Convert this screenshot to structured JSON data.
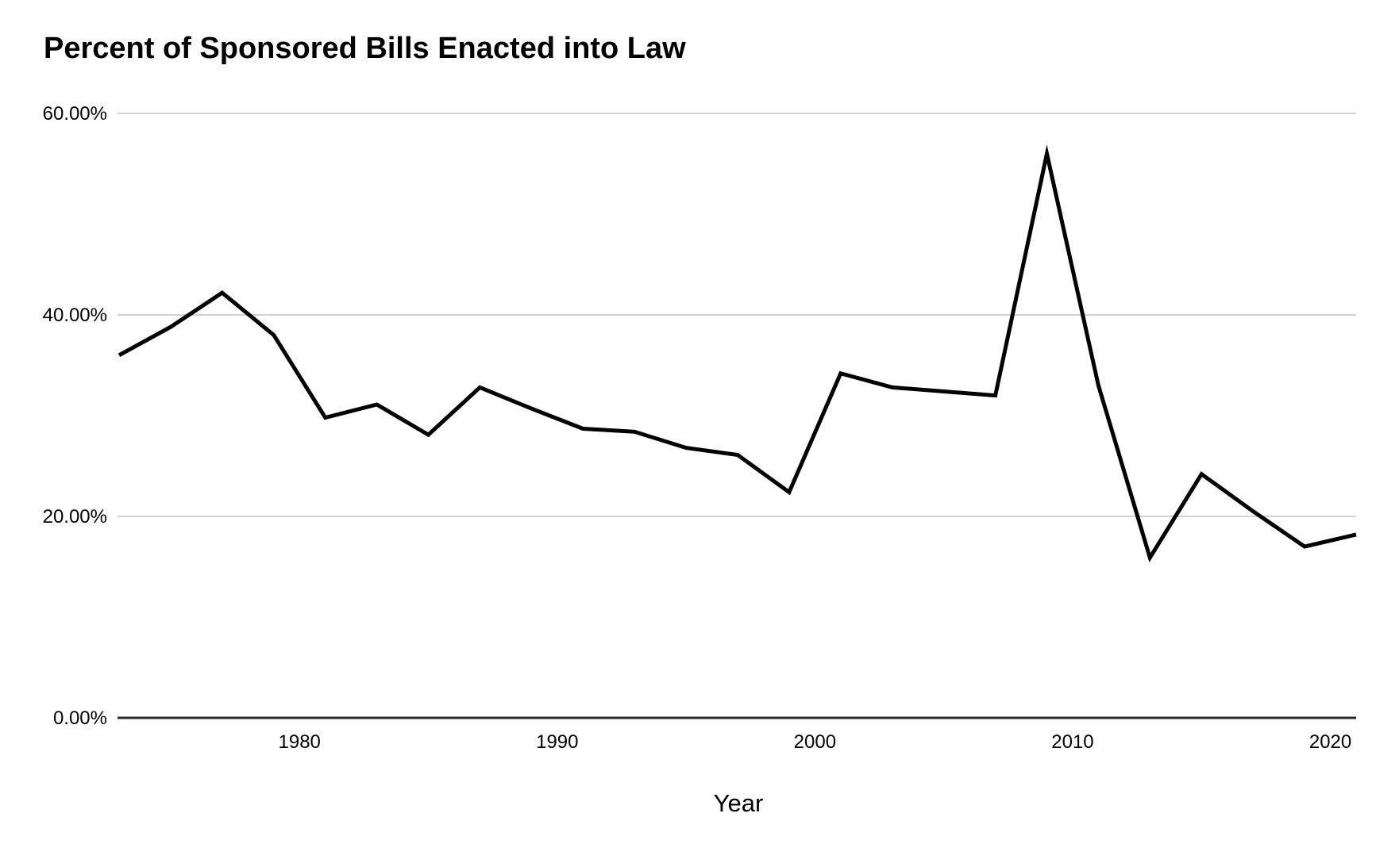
{
  "chart_data": {
    "type": "line",
    "title": "Percent of Sponsored Bills Enacted into Law",
    "xlabel": "Year",
    "ylabel": "",
    "x": [
      1973,
      1975,
      1977,
      1979,
      1981,
      1983,
      1985,
      1987,
      1989,
      1991,
      1993,
      1995,
      1997,
      1999,
      2001,
      2003,
      2005,
      2007,
      2009,
      2011,
      2013,
      2015,
      2017,
      2019,
      2021
    ],
    "series": [
      {
        "name": "Percent of Sponsored Bills Enacted into Law",
        "values": [
          36.0,
          38.8,
          42.2,
          38.0,
          29.8,
          31.1,
          28.1,
          32.8,
          30.7,
          28.7,
          28.4,
          26.8,
          26.1,
          22.4,
          34.2,
          32.8,
          32.4,
          32.0,
          56.0,
          33.0,
          15.9,
          24.2,
          20.5,
          17.0,
          18.2
        ]
      }
    ],
    "x_ticks": [
      {
        "value": 1980,
        "label": "1980"
      },
      {
        "value": 1990,
        "label": "1990"
      },
      {
        "value": 2000,
        "label": "2000"
      },
      {
        "value": 2010,
        "label": "2010"
      },
      {
        "value": 2020,
        "label": "2020"
      }
    ],
    "y_ticks": [
      {
        "value": 0,
        "label": "0.00%"
      },
      {
        "value": 20,
        "label": "20.00%"
      },
      {
        "value": 40,
        "label": "40.00%"
      },
      {
        "value": 60,
        "label": "60.00%"
      }
    ],
    "xlim": [
      1973,
      2021
    ],
    "ylim": [
      0,
      60
    ],
    "grid": "horizontal",
    "legend": "none",
    "line_color": "#000000",
    "gridline_color": "#d2d2d2",
    "axis_color": "#2b2b2b",
    "background": "#ffffff"
  }
}
